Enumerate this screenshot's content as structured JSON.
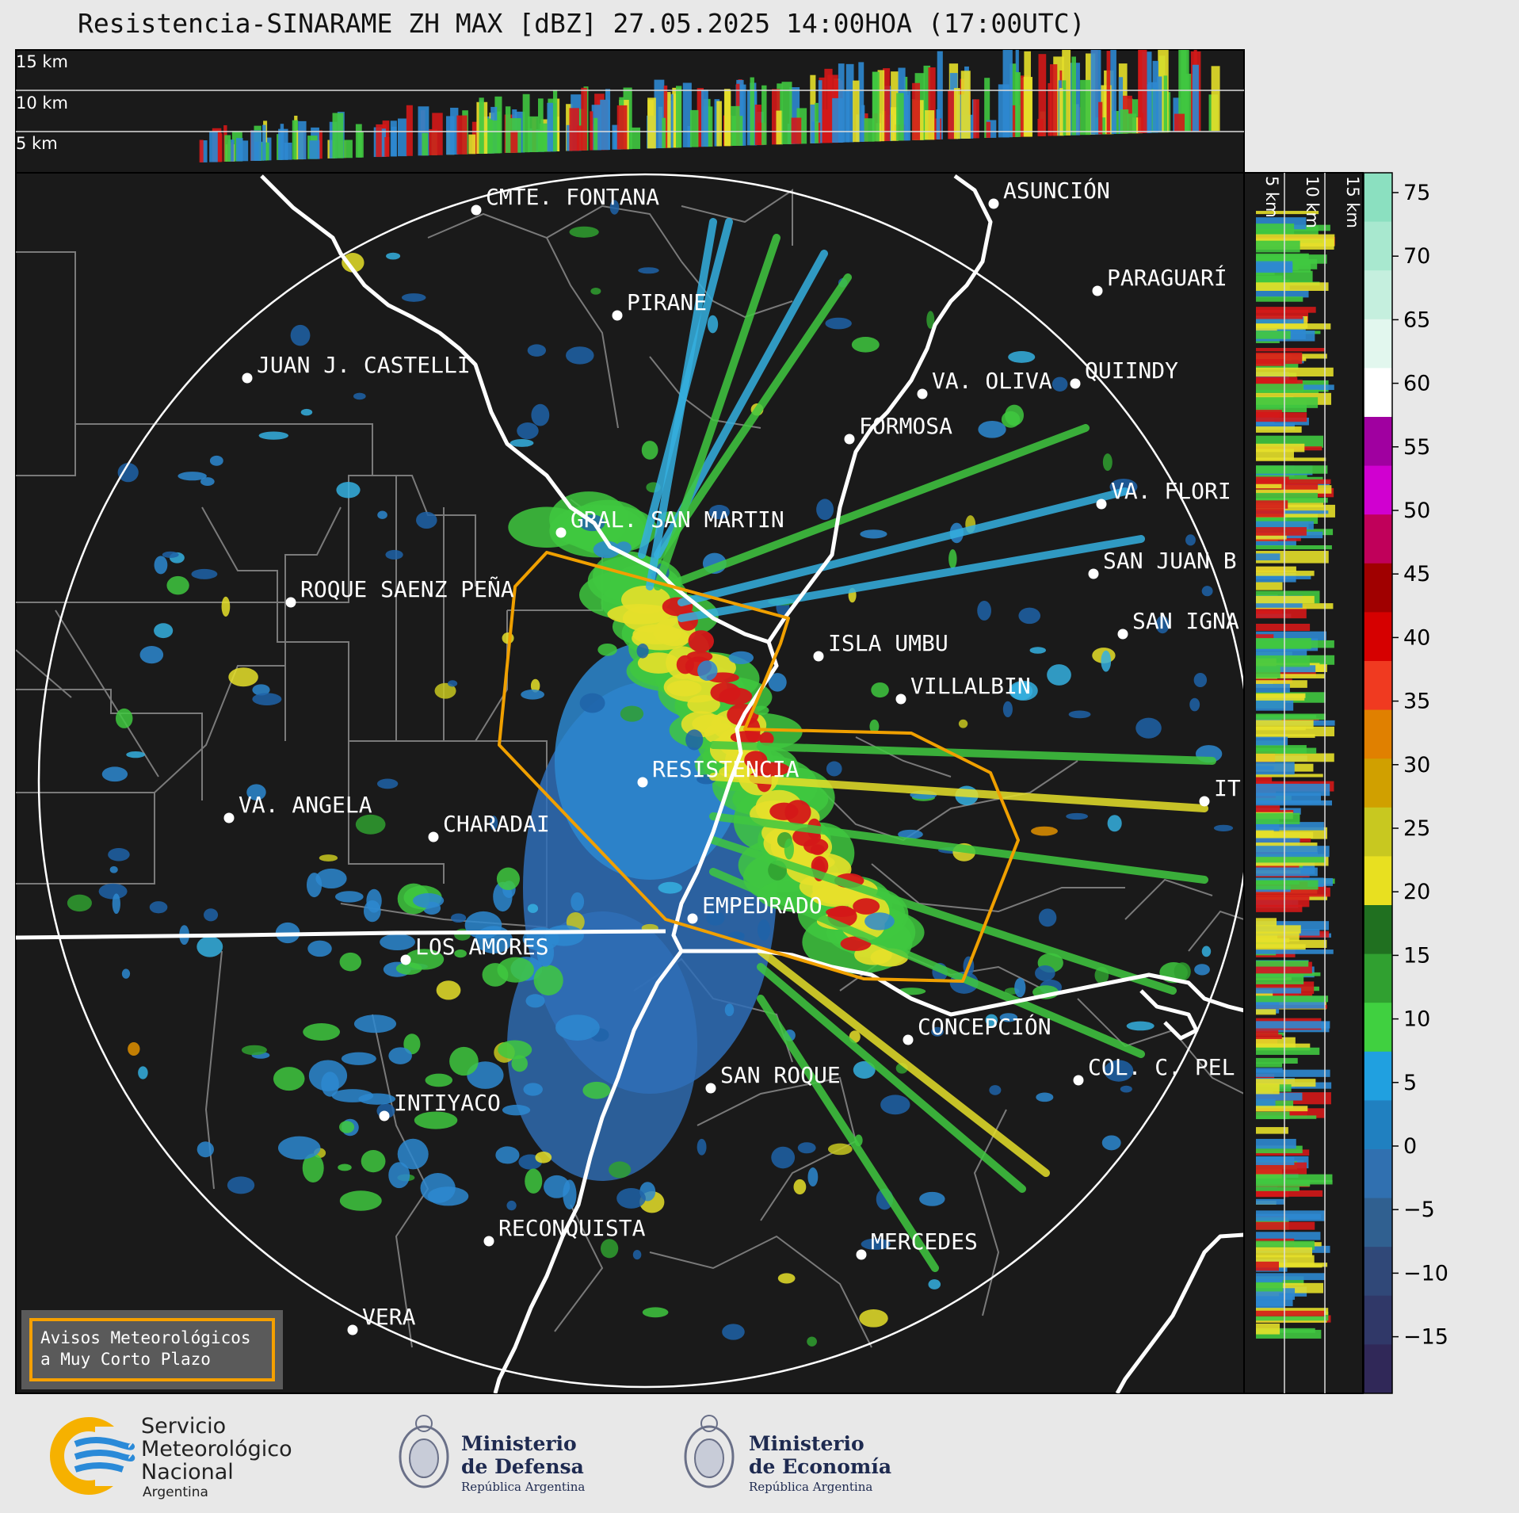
{
  "title": "Resistencia-SINARAME ZH MAX [dBZ] 27.05.2025 14:00HOA (17:00UTC)",
  "top_profile": {
    "height_labels": [
      "15 km",
      "10 km",
      "5 km"
    ]
  },
  "side_profile": {
    "height_labels": [
      "5 km",
      "10 km",
      "15 km"
    ]
  },
  "colorbar": {
    "ticks": [
      "75",
      "70",
      "65",
      "60",
      "55",
      "50",
      "45",
      "40",
      "35",
      "30",
      "25",
      "20",
      "15",
      "10",
      "5",
      "0",
      "−5",
      "−10",
      "−15"
    ],
    "colors": [
      "#8be0c0",
      "#a8e8cf",
      "#c5efde",
      "#e2f7ee",
      "#ffffff",
      "#a000a0",
      "#d000d0",
      "#c0005a",
      "#a00000",
      "#d60000",
      "#f03a20",
      "#e08000",
      "#d0a000",
      "#c8c820",
      "#e8e020",
      "#207020",
      "#30a030",
      "#40d040",
      "#20a0e0",
      "#2080c0",
      "#3070b0",
      "#306090",
      "#304878",
      "#303868",
      "#302858"
    ]
  },
  "cities": [
    {
      "name": "CMTE. FONTANA"
    },
    {
      "name": "ASUNCIÓN"
    },
    {
      "name": "PARAGUARÍ"
    },
    {
      "name": "PIRANE"
    },
    {
      "name": "JUAN J. CASTELLI"
    },
    {
      "name": "VA. OLIVA"
    },
    {
      "name": "QUIINDY"
    },
    {
      "name": "FORMOSA"
    },
    {
      "name": "VA. FLORI"
    },
    {
      "name": "GRAL. SAN MARTIN"
    },
    {
      "name": "SAN JUAN B"
    },
    {
      "name": "ROQUE SAENZ PEÑA"
    },
    {
      "name": "SAN IGNA"
    },
    {
      "name": "ISLA UMBU"
    },
    {
      "name": "VILLALBIN"
    },
    {
      "name": "RESISTENCIA"
    },
    {
      "name": "IT"
    },
    {
      "name": "VA. ANGELA"
    },
    {
      "name": "CHARADAI"
    },
    {
      "name": "EMPEDRADO"
    },
    {
      "name": "LOS AMORES"
    },
    {
      "name": "CONCEPCIÓN"
    },
    {
      "name": "COL. C. PEL"
    },
    {
      "name": "SAN ROQUE"
    },
    {
      "name": "INTIYACO"
    },
    {
      "name": "RECONQUISTA"
    },
    {
      "name": "MERCEDES"
    },
    {
      "name": "VERA"
    }
  ],
  "avisos": {
    "line1": "Avisos Meteorológicos",
    "line2": "a Muy Corto Plazo"
  },
  "logos": {
    "smn": {
      "line1": "Servicio",
      "line2": "Meteorológico",
      "line3": "Nacional",
      "line4": "Argentina"
    },
    "defensa": {
      "line1": "Ministerio",
      "line2": "de Defensa",
      "line3": "República Argentina"
    },
    "economia": {
      "line1": "Ministerio",
      "line2": "de Economía",
      "line3": "República Argentina"
    }
  }
}
